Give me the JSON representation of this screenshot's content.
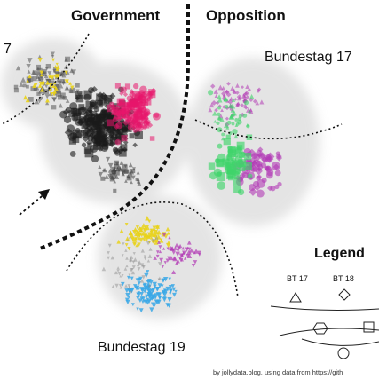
{
  "headers": {
    "left": "Government",
    "right": "Opposition"
  },
  "bundestag": {
    "bt17": "Bundestag 17",
    "bt19": "Bundestag 19",
    "cut_left": "7"
  },
  "legend": {
    "title": "Legend",
    "bt17": "BT 17",
    "bt18": "BT 18"
  },
  "credit": "by jollydata.blog, using data from https://gith",
  "colors": {
    "black_party": "#1a1a1a",
    "red_party": "#e8166b",
    "yellow_party": "#e9d21a",
    "green_party": "#3fd46a",
    "purple_party": "#b23bb5",
    "blue_party": "#3aa8e6",
    "grey_edges": "#bdbdbd"
  },
  "symbols": {
    "bt17": "triangle",
    "bt18": "diamond",
    "bt19": "inverted-triangle"
  }
}
